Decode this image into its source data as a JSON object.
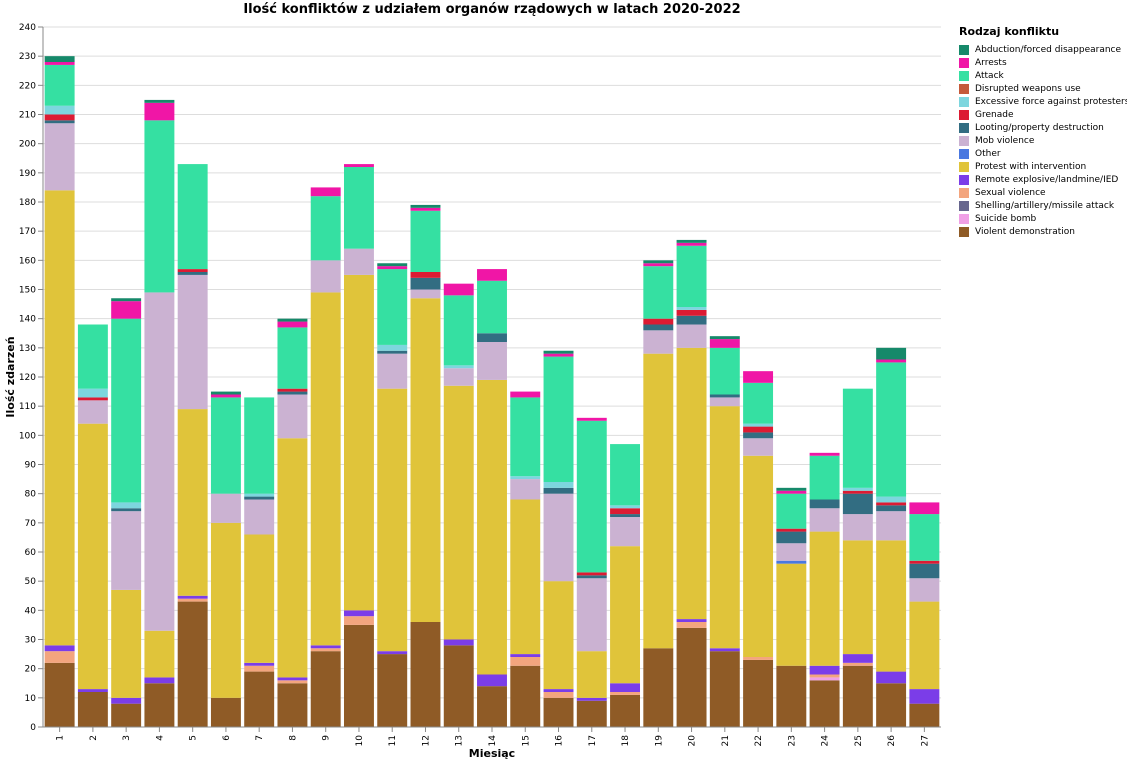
{
  "chart_data": {
    "type": "bar",
    "stacked": true,
    "title": "Ilość konfliktów z udziałem organów rządowych  w latach 2020-2022",
    "xlabel": "Miesiąc",
    "ylabel": "Ilość zdarzeń",
    "ylim": [
      0,
      240
    ],
    "yticks": [
      0,
      10,
      20,
      30,
      40,
      50,
      60,
      70,
      80,
      90,
      100,
      110,
      120,
      130,
      140,
      150,
      160,
      170,
      180,
      190,
      200,
      210,
      220,
      230,
      240
    ],
    "grid": true,
    "legend_position": "right",
    "legend_title": "Rodzaj konfliktu",
    "categories": [
      "1",
      "2",
      "3",
      "4",
      "5",
      "6",
      "7",
      "8",
      "9",
      "10",
      "11",
      "12",
      "13",
      "14",
      "15",
      "16",
      "17",
      "18",
      "19",
      "20",
      "21",
      "22",
      "23",
      "24",
      "25",
      "26",
      "27"
    ],
    "series": [
      {
        "name": "Violent demonstration",
        "color": "#8f5b26",
        "values": [
          22,
          12,
          8,
          15,
          43,
          10,
          19,
          15,
          26,
          35,
          25,
          36,
          28,
          14,
          21,
          10,
          9,
          11,
          27,
          34,
          26,
          23,
          21,
          16,
          21,
          15,
          8
        ]
      },
      {
        "name": "Suicide bomb",
        "color": "#f0a0e6",
        "values": [
          0,
          0,
          0,
          0,
          0,
          0,
          0,
          0,
          0,
          0,
          0,
          0,
          0,
          0,
          0,
          0,
          0,
          0,
          0,
          0,
          0,
          0,
          0,
          1,
          0,
          0,
          0
        ]
      },
      {
        "name": "Shelling/artillery/missile attack",
        "color": "#67668e",
        "values": [
          0,
          0,
          0,
          0,
          0,
          0,
          0,
          0,
          0,
          0,
          0,
          0,
          0,
          0,
          0,
          0,
          0,
          0,
          0,
          0,
          0,
          0,
          0,
          0,
          0,
          0,
          0
        ]
      },
      {
        "name": "Sexual violence",
        "color": "#f3a57e",
        "values": [
          4,
          0,
          0,
          0,
          1,
          0,
          2,
          1,
          1,
          3,
          0,
          0,
          0,
          0,
          3,
          2,
          0,
          1,
          0,
          2,
          0,
          1,
          0,
          1,
          1,
          0,
          0
        ]
      },
      {
        "name": "Remote explosive/landmine/IED",
        "color": "#7b3de8",
        "values": [
          2,
          1,
          2,
          2,
          1,
          0,
          1,
          1,
          1,
          2,
          1,
          0,
          2,
          4,
          1,
          1,
          1,
          3,
          0,
          1,
          1,
          0,
          0,
          3,
          3,
          4,
          5
        ]
      },
      {
        "name": "Protest with intervention",
        "color": "#e0c43a",
        "values": [
          156,
          91,
          37,
          16,
          64,
          60,
          44,
          82,
          121,
          115,
          90,
          111,
          87,
          101,
          53,
          37,
          16,
          47,
          101,
          93,
          83,
          69,
          35,
          46,
          39,
          45,
          30
        ]
      },
      {
        "name": "Other",
        "color": "#4a78e0",
        "values": [
          0,
          0,
          0,
          0,
          0,
          0,
          0,
          0,
          0,
          0,
          0,
          0,
          0,
          0,
          0,
          0,
          0,
          0,
          0,
          0,
          0,
          0,
          1,
          0,
          0,
          0,
          0
        ]
      },
      {
        "name": "Mob violence",
        "color": "#cbb2d2",
        "values": [
          23,
          8,
          27,
          116,
          46,
          10,
          12,
          15,
          11,
          9,
          12,
          3,
          6,
          13,
          7,
          30,
          25,
          10,
          8,
          8,
          3,
          6,
          6,
          8,
          9,
          10,
          8
        ]
      },
      {
        "name": "Looting/property destruction",
        "color": "#326d82",
        "values": [
          1,
          0,
          1,
          0,
          1,
          0,
          1,
          1,
          0,
          0,
          1,
          4,
          0,
          3,
          0,
          2,
          1,
          1,
          2,
          3,
          1,
          2,
          4,
          3,
          7,
          2,
          5
        ]
      },
      {
        "name": "Grenade",
        "color": "#dc1b33",
        "values": [
          2,
          1,
          0,
          0,
          1,
          0,
          0,
          1,
          0,
          0,
          0,
          2,
          0,
          0,
          0,
          0,
          1,
          2,
          2,
          2,
          0,
          2,
          1,
          0,
          1,
          1,
          1
        ]
      },
      {
        "name": "Excessive force against protesters",
        "color": "#7dd6de",
        "values": [
          3,
          3,
          2,
          0,
          0,
          0,
          1,
          0,
          0,
          0,
          2,
          0,
          1,
          0,
          1,
          2,
          0,
          1,
          0,
          1,
          0,
          1,
          0,
          0,
          1,
          2,
          0
        ]
      },
      {
        "name": "Disrupted weapons use",
        "color": "#c55a3a",
        "values": [
          0,
          0,
          0,
          0,
          0,
          0,
          0,
          0,
          0,
          0,
          0,
          0,
          0,
          0,
          0,
          0,
          0,
          0,
          0,
          0,
          0,
          0,
          0,
          0,
          0,
          0,
          0
        ]
      },
      {
        "name": "Attack",
        "color": "#35e0a2",
        "values": [
          14,
          22,
          63,
          59,
          36,
          33,
          33,
          21,
          22,
          28,
          26,
          21,
          24,
          18,
          27,
          43,
          52,
          21,
          18,
          21,
          16,
          14,
          12,
          15,
          34,
          46,
          16
        ]
      },
      {
        "name": "Arrests",
        "color": "#f016a6",
        "values": [
          1,
          0,
          6,
          6,
          0,
          1,
          0,
          2,
          3,
          1,
          1,
          1,
          4,
          4,
          2,
          1,
          1,
          0,
          1,
          1,
          3,
          4,
          1,
          1,
          0,
          1,
          4
        ]
      },
      {
        "name": "Abduction/forced disappearance",
        "color": "#16896a",
        "values": [
          2,
          0,
          1,
          1,
          0,
          1,
          0,
          1,
          0,
          0,
          1,
          1,
          0,
          0,
          0,
          1,
          0,
          0,
          1,
          1,
          1,
          0,
          1,
          0,
          0,
          4,
          0
        ]
      }
    ]
  }
}
